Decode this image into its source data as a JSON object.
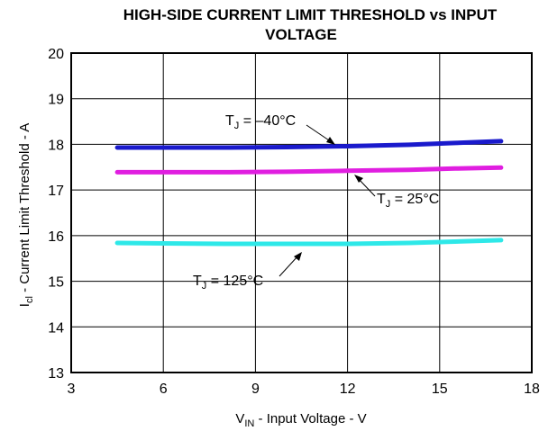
{
  "chart_data": {
    "type": "line",
    "title_line1": "HIGH-SIDE CURRENT LIMIT THRESHOLD vs INPUT",
    "title_line2": "VOLTAGE",
    "xlabel": {
      "main": "V",
      "sub": "IN",
      "rest": " - Input Voltage - V"
    },
    "ylabel": {
      "main": "I",
      "sub": "cl",
      "rest": " - Current Limit Threshold - A"
    },
    "xlim": [
      3,
      18
    ],
    "ylim": [
      13,
      20
    ],
    "x_ticks": [
      "3",
      "6",
      "9",
      "12",
      "15",
      "18"
    ],
    "y_ticks": [
      "13",
      "14",
      "15",
      "16",
      "17",
      "18",
      "19",
      "20"
    ],
    "grid": true,
    "series": [
      {
        "name": {
          "main": "T",
          "sub": "J",
          "rest": " = –40°C"
        },
        "color": "#1a1acc",
        "x": [
          4.5,
          6,
          8,
          10,
          12,
          14,
          15.5,
          17
        ],
        "y": [
          17.93,
          17.93,
          17.93,
          17.94,
          17.96,
          17.99,
          18.03,
          18.07
        ]
      },
      {
        "name": {
          "main": "T",
          "sub": "J",
          "rest": " = 25°C"
        },
        "color": "#e01ee0",
        "x": [
          4.5,
          6,
          8,
          10,
          12,
          14,
          15.5,
          17
        ],
        "y": [
          17.39,
          17.39,
          17.39,
          17.4,
          17.42,
          17.44,
          17.47,
          17.49
        ]
      },
      {
        "name": {
          "main": "T",
          "sub": "J",
          "rest": " = 125°C"
        },
        "color": "#2ee8e8",
        "x": [
          4.5,
          6,
          8,
          10,
          12,
          14,
          15.5,
          17
        ],
        "y": [
          15.84,
          15.83,
          15.82,
          15.82,
          15.82,
          15.84,
          15.87,
          15.9
        ]
      }
    ]
  }
}
